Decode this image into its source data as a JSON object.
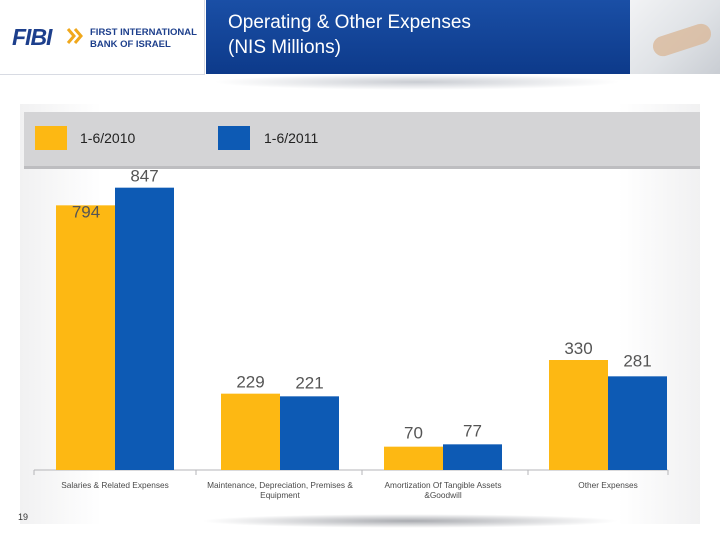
{
  "logo": {
    "short": "FIBI",
    "line1": "FIRST INTERNATIONAL",
    "line2": "BANK OF ISRAEL"
  },
  "header": {
    "title_line1": "Operating & Other Expenses",
    "title_line2": "(NIS Millions)"
  },
  "page_number": "19",
  "colors": {
    "series_2010": "#FDB813",
    "series_2011": "#0D5AB4",
    "title_bar": "#0D3A8A"
  },
  "chart_data": {
    "type": "bar",
    "categories": [
      "Salaries & Related Expenses",
      "Maintenance, Depreciation, Premises & Equipment",
      "Amortization Of Tangible Assets &Goodwill",
      "Other Expenses"
    ],
    "series": [
      {
        "name": "1-6/2010",
        "values": [
          794,
          229,
          70,
          330
        ]
      },
      {
        "name": "1-6/2011",
        "values": [
          847,
          221,
          77,
          281
        ]
      }
    ],
    "title": "",
    "xlabel": "",
    "ylabel": "",
    "ylim": [
      0,
      900
    ],
    "legend": "top-left",
    "grid": false
  }
}
